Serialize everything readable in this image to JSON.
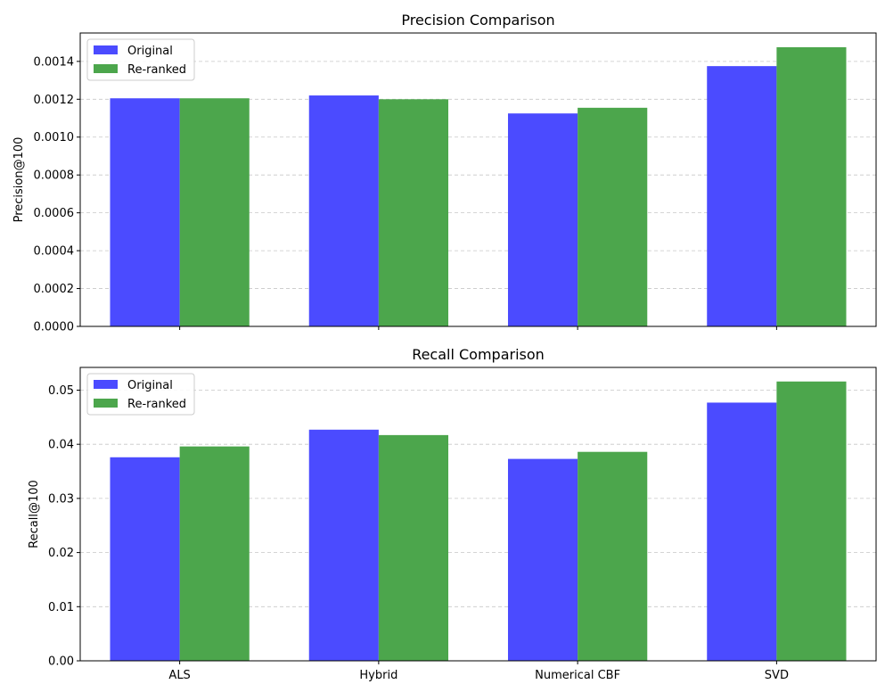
{
  "chart_data": [
    {
      "type": "bar",
      "title": "Precision Comparison",
      "xlabel": "",
      "ylabel": "Precision@100",
      "categories": [
        "ALS",
        "Hybrid",
        "Numerical CBF",
        "SVD"
      ],
      "show_category_labels": false,
      "series": [
        {
          "name": "Original",
          "color": "#4b4bff",
          "values": [
            0.001205,
            0.00122,
            0.001125,
            0.001375
          ]
        },
        {
          "name": "Re-ranked",
          "color": "#4ca64c",
          "values": [
            0.001205,
            0.0012,
            0.001155,
            0.001475
          ]
        }
      ],
      "ylim": [
        0,
        0.00155
      ],
      "yticks": [
        {
          "value": 0,
          "label": "0.0000"
        },
        {
          "value": 0.0002,
          "label": "0.0002"
        },
        {
          "value": 0.0004,
          "label": "0.0004"
        },
        {
          "value": 0.0006,
          "label": "0.0006"
        },
        {
          "value": 0.0008,
          "label": "0.0008"
        },
        {
          "value": 0.001,
          "label": "0.0010"
        },
        {
          "value": 0.0012,
          "label": "0.0012"
        },
        {
          "value": 0.0014,
          "label": "0.0014"
        }
      ],
      "grid": "y-dashed",
      "legend": "top-left"
    },
    {
      "type": "bar",
      "title": "Recall Comparison",
      "xlabel": "",
      "ylabel": "Recall@100",
      "categories": [
        "ALS",
        "Hybrid",
        "Numerical CBF",
        "SVD"
      ],
      "show_category_labels": true,
      "series": [
        {
          "name": "Original",
          "color": "#4b4bff",
          "values": [
            0.0376,
            0.0427,
            0.0373,
            0.0477
          ]
        },
        {
          "name": "Re-ranked",
          "color": "#4ca64c",
          "values": [
            0.0396,
            0.0417,
            0.0386,
            0.0516
          ]
        }
      ],
      "ylim": [
        0,
        0.0542
      ],
      "yticks": [
        {
          "value": 0,
          "label": "0.00"
        },
        {
          "value": 0.01,
          "label": "0.01"
        },
        {
          "value": 0.02,
          "label": "0.02"
        },
        {
          "value": 0.03,
          "label": "0.03"
        },
        {
          "value": 0.04,
          "label": "0.04"
        },
        {
          "value": 0.05,
          "label": "0.05"
        }
      ],
      "grid": "y-dashed",
      "legend": "top-left"
    }
  ]
}
